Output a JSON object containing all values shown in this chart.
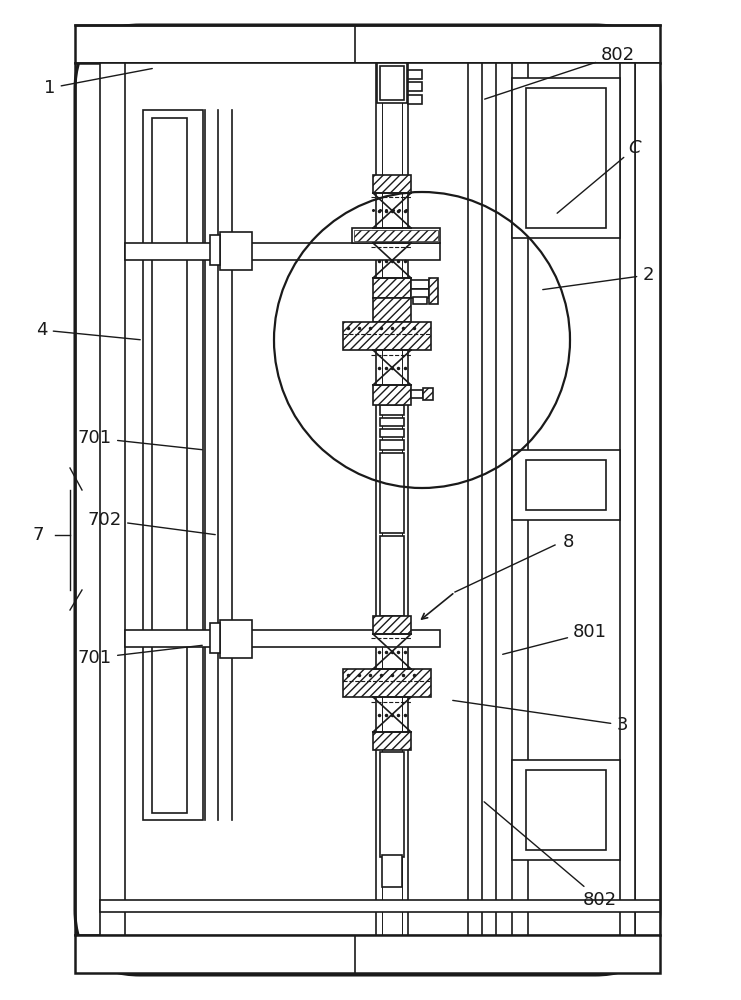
{
  "bg_color": "#ffffff",
  "line_color": "#1a1a1a",
  "lw": 1.2,
  "lw2": 1.8,
  "fs": 13
}
